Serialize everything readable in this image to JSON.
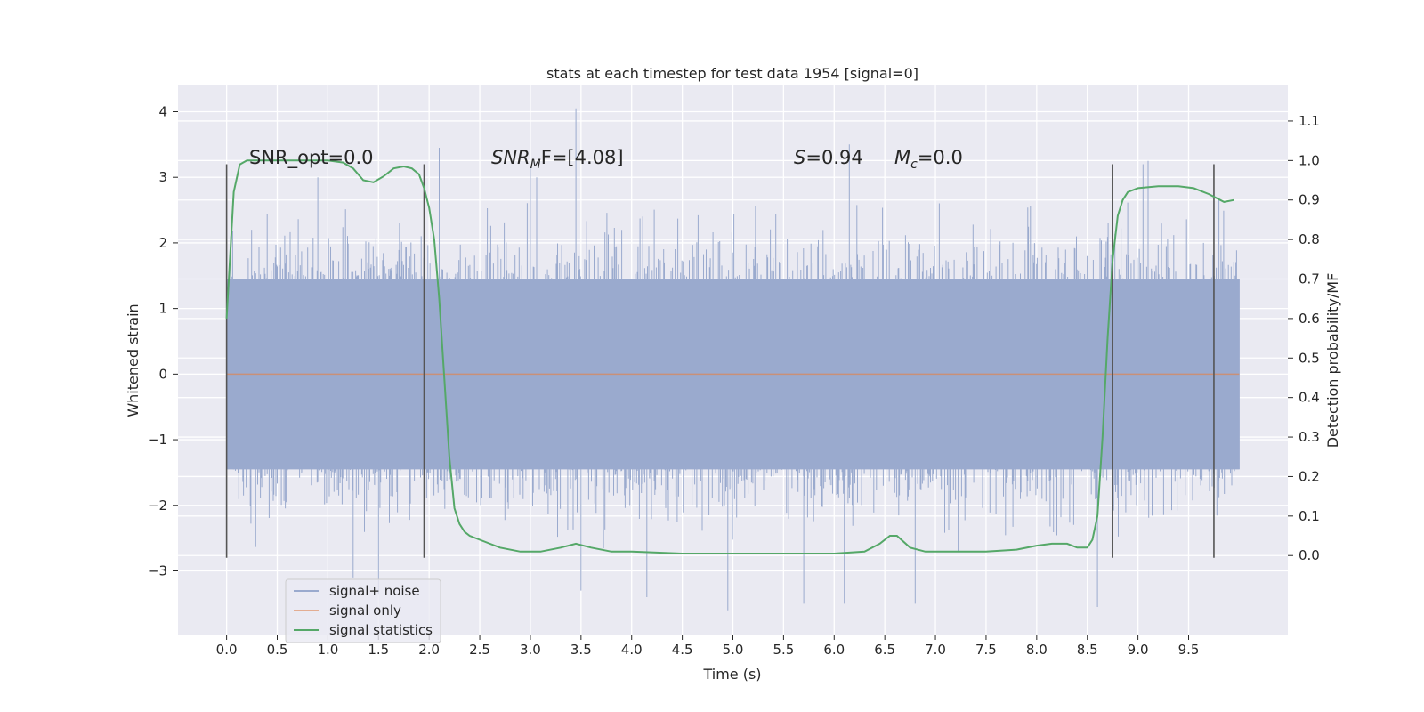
{
  "chart_data": {
    "type": "line",
    "title": "stats at each timestep for test data 1954 [signal=0]",
    "xlabel": "Time (s)",
    "ylabel": "Whitened strain",
    "ylabel_right": "Detection probability/MF",
    "xlim": [
      -0.48,
      10.48
    ],
    "ylim": [
      -3.97,
      4.4
    ],
    "ylim_right": [
      -0.2,
      1.19
    ],
    "x_ticks": [
      "0.0",
      "0.5",
      "1.0",
      "1.5",
      "2.0",
      "2.5",
      "3.0",
      "3.5",
      "4.0",
      "4.5",
      "5.0",
      "5.5",
      "6.0",
      "6.5",
      "7.0",
      "7.5",
      "8.0",
      "8.5",
      "9.0",
      "9.5"
    ],
    "y_ticks": [
      "−3",
      "−2",
      "−1",
      "0",
      "1",
      "2",
      "3",
      "4"
    ],
    "y_right_ticks": [
      "0.0",
      "0.1",
      "0.2",
      "0.3",
      "0.4",
      "0.5",
      "0.6",
      "0.7",
      "0.8",
      "0.9",
      "1.0",
      "1.1"
    ],
    "grid": true,
    "legend_position": "lower-left",
    "annotations": {
      "snr_opt": "SNR_opt=0.0",
      "snr_mf_prefix": "SNR",
      "snr_mf_sub": "M",
      "snr_mf_suffix": "F=[4.08]",
      "s_symbol": "S",
      "s_value": "=0.94",
      "mc_symbol": "M",
      "mc_sub": "c",
      "mc_value": "=0.0"
    },
    "vertical_markers": [
      0.0,
      1.95,
      8.75,
      9.75
    ],
    "vertical_marker_range": [
      -2.8,
      3.2
    ],
    "series": [
      {
        "name": "signal+ noise",
        "color": "#9aaace",
        "x_range": [
          0.0,
          10.0
        ],
        "band_dense": [
          -1.45,
          1.45
        ],
        "envelope_typical": [
          -2.0,
          2.0
        ],
        "peaks": [
          {
            "x": 3.45,
            "y": 4.05
          },
          {
            "x": 6.15,
            "y": 3.5
          },
          {
            "x": 2.1,
            "y": 3.45
          },
          {
            "x": 9.1,
            "y": 3.25
          },
          {
            "x": 9.05,
            "y": 3.2
          },
          {
            "x": 3.0,
            "y": 3.15
          },
          {
            "x": 4.95,
            "y": -3.6
          },
          {
            "x": 8.6,
            "y": -3.55
          },
          {
            "x": 5.7,
            "y": -3.5
          },
          {
            "x": 1.5,
            "y": -3.35
          },
          {
            "x": 6.8,
            "y": -3.5
          },
          {
            "x": 6.1,
            "y": -3.5
          },
          {
            "x": 3.5,
            "y": -3.3
          },
          {
            "x": 4.15,
            "y": -3.4
          },
          {
            "x": 1.25,
            "y": -3.1
          }
        ]
      },
      {
        "name": "signal only",
        "color": "#dd8452",
        "x": [
          0.0,
          10.0
        ],
        "y": [
          0.0,
          0.0
        ]
      },
      {
        "name": "signal statistics",
        "color": "#55a868",
        "axis": "right",
        "x": [
          0.0,
          0.07,
          0.13,
          0.2,
          0.3,
          0.5,
          0.8,
          1.0,
          1.15,
          1.25,
          1.35,
          1.45,
          1.55,
          1.65,
          1.75,
          1.83,
          1.9,
          1.95,
          2.0,
          2.05,
          2.1,
          2.15,
          2.2,
          2.25,
          2.3,
          2.35,
          2.4,
          2.5,
          2.7,
          2.9,
          3.1,
          3.3,
          3.45,
          3.6,
          3.8,
          4.0,
          4.5,
          5.0,
          5.5,
          6.0,
          6.3,
          6.45,
          6.55,
          6.62,
          6.75,
          6.9,
          7.2,
          7.5,
          7.8,
          8.0,
          8.15,
          8.3,
          8.4,
          8.5,
          8.55,
          8.6,
          8.65,
          8.7,
          8.75,
          8.8,
          8.85,
          8.9,
          9.0,
          9.2,
          9.4,
          9.55,
          9.7,
          9.85,
          9.95
        ],
        "y": [
          0.6,
          0.92,
          0.99,
          1.0,
          1.0,
          1.0,
          1.0,
          1.0,
          0.995,
          0.98,
          0.95,
          0.945,
          0.96,
          0.98,
          0.985,
          0.98,
          0.965,
          0.93,
          0.88,
          0.8,
          0.65,
          0.45,
          0.25,
          0.12,
          0.08,
          0.06,
          0.05,
          0.04,
          0.02,
          0.01,
          0.01,
          0.02,
          0.03,
          0.02,
          0.01,
          0.01,
          0.005,
          0.005,
          0.005,
          0.005,
          0.01,
          0.03,
          0.05,
          0.05,
          0.02,
          0.01,
          0.01,
          0.01,
          0.015,
          0.025,
          0.03,
          0.03,
          0.02,
          0.02,
          0.04,
          0.1,
          0.3,
          0.55,
          0.75,
          0.86,
          0.9,
          0.92,
          0.93,
          0.935,
          0.935,
          0.93,
          0.915,
          0.895,
          0.9
        ]
      }
    ]
  }
}
